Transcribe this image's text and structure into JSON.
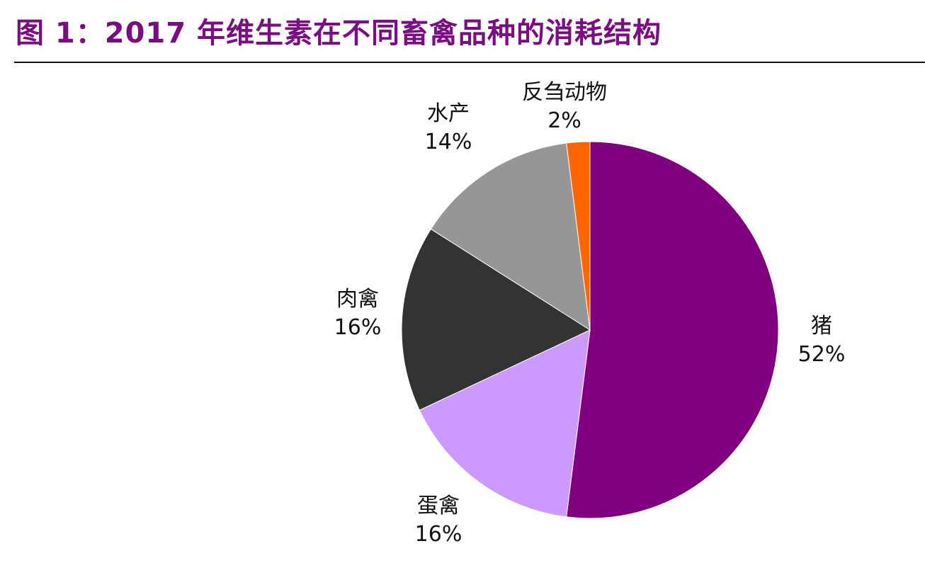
{
  "page": {
    "title": "图 1：2017 年维生素在不同畜禽品种的消耗结构"
  },
  "chart_data": {
    "type": "pie",
    "title": "图 1：2017 年维生素在不同畜禽品种的消耗结构",
    "start_angle_deg": 0,
    "direction": "clockwise",
    "slices": [
      {
        "name": "猪",
        "value": 52,
        "label": "52%",
        "color": "#800080"
      },
      {
        "name": "蛋禽",
        "value": 16,
        "label": "16%",
        "color": "#cc99ff"
      },
      {
        "name": "肉禽",
        "value": 16,
        "label": "16%",
        "color": "#333333"
      },
      {
        "name": "水产",
        "value": 14,
        "label": "14%",
        "color": "#969696"
      },
      {
        "name": "反刍动物",
        "value": 2,
        "label": "2%",
        "color": "#ff6600"
      }
    ]
  }
}
